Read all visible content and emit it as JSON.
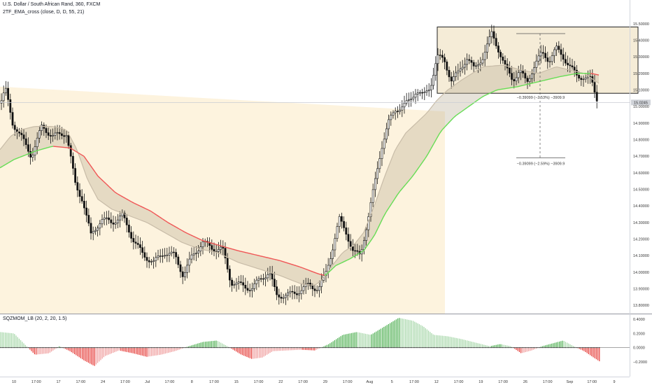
{
  "header": {
    "title": "U.S. Dollar / South African Rand, 360, FXCM",
    "indicator_1": "2TF_EMA_cross (close, D, D, 55, 21)",
    "indicator_2": "SQZMOM_LB (20, 2, 20, 1.5)"
  },
  "chart_data": [
    {
      "type": "candlestick",
      "panel": "price",
      "y_ticks": [
        "15.50000",
        "15.40000",
        "15.30000",
        "15.20000",
        "15.10000",
        "15.00000",
        "14.90000",
        "14.80000",
        "14.70000",
        "14.60000",
        "14.50000",
        "14.40000",
        "14.30000",
        "14.20000",
        "14.10000",
        "14.00000",
        "13.90000",
        "13.80000"
      ],
      "x_ticks": [
        "10",
        "17:00",
        "17",
        "17:00",
        "24",
        "17:00",
        "Jul",
        "17:00",
        "8",
        "17:00",
        "15",
        "17:00",
        "22",
        "17:00",
        "29",
        "17:00",
        "Aug",
        "5",
        "17:00",
        "12",
        "17:00",
        "19",
        "17:00",
        "26",
        "17:00",
        "Sep",
        "17:00",
        "9"
      ],
      "ylim": [
        13.75,
        15.55
      ],
      "last_price_label": "15.0245",
      "close_path": [
        [
          0,
          15.02
        ],
        [
          8,
          15.1
        ],
        [
          18,
          14.9
        ],
        [
          30,
          14.82
        ],
        [
          45,
          14.7
        ],
        [
          60,
          14.88
        ],
        [
          75,
          14.82
        ],
        [
          95,
          14.84
        ],
        [
          108,
          14.52
        ],
        [
          118,
          14.44
        ],
        [
          130,
          14.22
        ],
        [
          145,
          14.32
        ],
        [
          160,
          14.3
        ],
        [
          175,
          14.34
        ],
        [
          190,
          14.2
        ],
        [
          205,
          14.1
        ],
        [
          220,
          14.06
        ],
        [
          235,
          14.12
        ],
        [
          250,
          14.1
        ],
        [
          262,
          13.98
        ],
        [
          275,
          14.1
        ],
        [
          290,
          14.18
        ],
        [
          305,
          14.14
        ],
        [
          318,
          14.14
        ],
        [
          330,
          13.94
        ],
        [
          345,
          13.92
        ],
        [
          360,
          13.9
        ],
        [
          372,
          13.96
        ],
        [
          385,
          14.0
        ],
        [
          395,
          13.86
        ],
        [
          410,
          13.86
        ],
        [
          425,
          13.88
        ],
        [
          440,
          13.92
        ],
        [
          455,
          13.9
        ],
        [
          465,
          13.98
        ],
        [
          475,
          14.14
        ],
        [
          485,
          14.32
        ],
        [
          495,
          14.24
        ],
        [
          505,
          14.12
        ],
        [
          515,
          14.1
        ],
        [
          525,
          14.3
        ],
        [
          535,
          14.52
        ],
        [
          545,
          14.75
        ],
        [
          555,
          14.9
        ],
        [
          565,
          14.98
        ],
        [
          575,
          15.0
        ],
        [
          585,
          15.03
        ],
        [
          595,
          15.1
        ],
        [
          605,
          15.06
        ],
        [
          615,
          15.12
        ],
        [
          625,
          15.3
        ],
        [
          635,
          15.28
        ],
        [
          645,
          15.16
        ],
        [
          655,
          15.2
        ],
        [
          668,
          15.3
        ],
        [
          678,
          15.22
        ],
        [
          690,
          15.3
        ],
        [
          703,
          15.44
        ],
        [
          713,
          15.34
        ],
        [
          723,
          15.23
        ],
        [
          733,
          15.16
        ],
        [
          743,
          15.22
        ],
        [
          753,
          15.14
        ],
        [
          765,
          15.26
        ],
        [
          775,
          15.32
        ],
        [
          785,
          15.28
        ],
        [
          795,
          15.35
        ],
        [
          805,
          15.3
        ],
        [
          815,
          15.24
        ],
        [
          825,
          15.18
        ],
        [
          835,
          15.18
        ],
        [
          845,
          15.16
        ],
        [
          852,
          15.06
        ],
        [
          856,
          15.02
        ]
      ],
      "ema_fast_path": [
        [
          0,
          14.74
        ],
        [
          15,
          14.82
        ],
        [
          30,
          14.86
        ],
        [
          50,
          14.88
        ],
        [
          75,
          14.88
        ],
        [
          95,
          14.86
        ],
        [
          110,
          14.74
        ],
        [
          125,
          14.56
        ],
        [
          140,
          14.44
        ],
        [
          160,
          14.38
        ],
        [
          185,
          14.34
        ],
        [
          210,
          14.3
        ],
        [
          235,
          14.24
        ],
        [
          260,
          14.18
        ],
        [
          285,
          14.14
        ],
        [
          310,
          14.12
        ],
        [
          340,
          14.06
        ],
        [
          370,
          14.02
        ],
        [
          400,
          13.98
        ],
        [
          430,
          13.93
        ],
        [
          450,
          13.92
        ],
        [
          462,
          13.96
        ],
        [
          475,
          14.04
        ],
        [
          490,
          14.12
        ],
        [
          505,
          14.16
        ],
        [
          520,
          14.24
        ],
        [
          535,
          14.4
        ],
        [
          550,
          14.58
        ],
        [
          565,
          14.74
        ],
        [
          580,
          14.84
        ],
        [
          595,
          14.9
        ],
        [
          610,
          14.96
        ],
        [
          625,
          15.04
        ],
        [
          640,
          15.1
        ],
        [
          660,
          15.16
        ],
        [
          690,
          15.24
        ],
        [
          720,
          15.25
        ],
        [
          745,
          15.22
        ],
        [
          770,
          15.2
        ],
        [
          795,
          15.24
        ],
        [
          815,
          15.22
        ],
        [
          835,
          15.2
        ],
        [
          856,
          15.14
        ]
      ],
      "ema_slow_path": [
        [
          0,
          14.63
        ],
        [
          20,
          14.68
        ],
        [
          50,
          14.73
        ],
        [
          75,
          14.76
        ],
        [
          100,
          14.75
        ],
        [
          120,
          14.7
        ],
        [
          140,
          14.58
        ],
        [
          165,
          14.48
        ],
        [
          190,
          14.42
        ],
        [
          215,
          14.37
        ],
        [
          240,
          14.3
        ],
        [
          265,
          14.24
        ],
        [
          290,
          14.19
        ],
        [
          315,
          14.16
        ],
        [
          340,
          14.13
        ],
        [
          370,
          14.1
        ],
        [
          400,
          14.07
        ],
        [
          430,
          14.03
        ],
        [
          455,
          13.99
        ],
        [
          465,
          13.98
        ],
        [
          480,
          14.04
        ],
        [
          500,
          14.08
        ],
        [
          520,
          14.13
        ],
        [
          535,
          14.22
        ],
        [
          550,
          14.35
        ],
        [
          570,
          14.48
        ],
        [
          590,
          14.58
        ],
        [
          610,
          14.7
        ],
        [
          630,
          14.85
        ],
        [
          650,
          14.94
        ],
        [
          670,
          15.0
        ],
        [
          690,
          15.06
        ],
        [
          710,
          15.1
        ],
        [
          740,
          15.12
        ],
        [
          770,
          15.15
        ],
        [
          800,
          15.18
        ],
        [
          825,
          15.2
        ],
        [
          845,
          15.2
        ],
        [
          856,
          15.19
        ]
      ],
      "annotations": {
        "range_box": {
          "x0": 625,
          "x1": 912,
          "y_top": 15.48,
          "y_bottom": 15.08
        },
        "measure_upper": "−0.39099 (−2.53%) −3909.9",
        "measure_lower": "−0.39099 (−2.59%) −3909.9"
      }
    },
    {
      "type": "histogram",
      "panel": "momentum",
      "y_ticks": [
        "0.4000",
        "0.2000",
        "0.0000",
        "−0.2000"
      ],
      "ylim": [
        -0.33,
        0.47
      ],
      "colors": {
        "up_strong": "#4caf50",
        "up_weak": "#a5d6a7",
        "down_strong": "#e53935",
        "down_weak": "#ef9a9a"
      },
      "momentum_path": [
        [
          0,
          0.22
        ],
        [
          20,
          0.2
        ],
        [
          35,
          0.05
        ],
        [
          50,
          -0.1
        ],
        [
          70,
          -0.08
        ],
        [
          85,
          0.02
        ],
        [
          100,
          -0.05
        ],
        [
          120,
          -0.18
        ],
        [
          135,
          -0.26
        ],
        [
          150,
          -0.12
        ],
        [
          170,
          -0.04
        ],
        [
          190,
          -0.08
        ],
        [
          210,
          -0.13
        ],
        [
          230,
          -0.1
        ],
        [
          250,
          -0.05
        ],
        [
          270,
          0.02
        ],
        [
          290,
          0.08
        ],
        [
          310,
          0.1
        ],
        [
          325,
          0.02
        ],
        [
          345,
          -0.1
        ],
        [
          360,
          -0.16
        ],
        [
          375,
          -0.14
        ],
        [
          390,
          -0.05
        ],
        [
          410,
          -0.04
        ],
        [
          430,
          -0.03
        ],
        [
          450,
          -0.04
        ],
        [
          470,
          0.05
        ],
        [
          490,
          0.18
        ],
        [
          510,
          0.22
        ],
        [
          530,
          0.18
        ],
        [
          550,
          0.3
        ],
        [
          570,
          0.42
        ],
        [
          590,
          0.38
        ],
        [
          605,
          0.3
        ],
        [
          620,
          0.18
        ],
        [
          640,
          0.16
        ],
        [
          660,
          0.12
        ],
        [
          680,
          0.07
        ],
        [
          700,
          0.02
        ],
        [
          715,
          0.05
        ],
        [
          730,
          0.02
        ],
        [
          745,
          -0.08
        ],
        [
          760,
          -0.04
        ],
        [
          775,
          0.02
        ],
        [
          790,
          0.06
        ],
        [
          805,
          0.1
        ],
        [
          820,
          0.02
        ],
        [
          835,
          -0.05
        ],
        [
          850,
          -0.15
        ],
        [
          858,
          -0.2
        ]
      ]
    }
  ]
}
